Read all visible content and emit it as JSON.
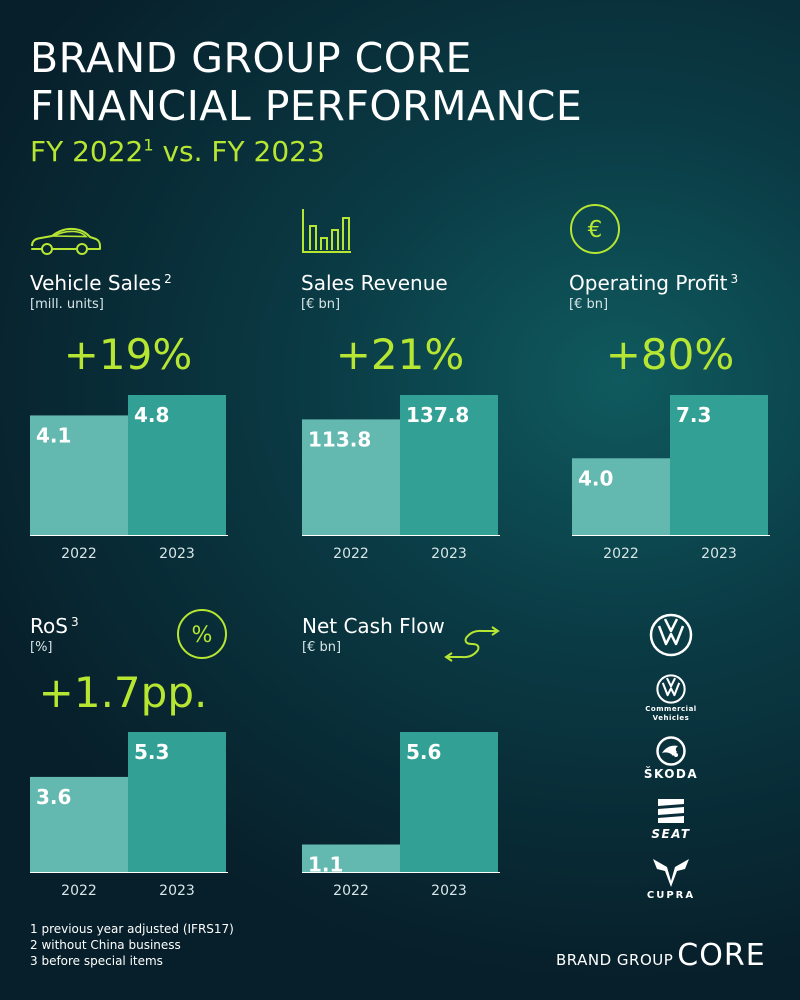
{
  "header": {
    "title": "BRAND GROUP CORE\nFINANCIAL PERFORMANCE",
    "subtitle": "FY 2022",
    "subtitle_sup": "1",
    "subtitle_rest": " vs. FY 2023"
  },
  "metrics": [
    {
      "label": "Vehicle Sales",
      "sup": "2",
      "unit": "[mill. units]",
      "change": "+19%",
      "icon": "car-icon"
    },
    {
      "label": "Sales Revenue",
      "sup": "",
      "unit": "[€ bn]",
      "change": "+21%",
      "icon": "bar-chart-icon"
    },
    {
      "label": "Operating Profit",
      "sup": "3",
      "unit": "[€ bn]",
      "change": "+80%",
      "icon": "euro-icon"
    },
    {
      "label": "RoS",
      "sup": "3",
      "unit": "[%]",
      "change": "+1.7pp.",
      "icon": "percent-icon"
    },
    {
      "label": "Net Cash Flow",
      "sup": "",
      "unit": "[€ bn]",
      "change": "",
      "icon": "exchange-arrows-icon"
    }
  ],
  "chart_data": [
    {
      "type": "bar",
      "categories": [
        "2022",
        "2023"
      ],
      "values": [
        4.1,
        4.8
      ],
      "labels": [
        "4.1",
        "4.8"
      ]
    },
    {
      "type": "bar",
      "categories": [
        "2022",
        "2023"
      ],
      "values": [
        113.8,
        137.8
      ],
      "labels": [
        "113.8",
        "137.8"
      ]
    },
    {
      "type": "bar",
      "categories": [
        "2022",
        "2023"
      ],
      "values": [
        4.0,
        7.3
      ],
      "labels": [
        "4.0",
        "7.3"
      ]
    },
    {
      "type": "bar",
      "categories": [
        "2022",
        "2023"
      ],
      "values": [
        3.6,
        5.3
      ],
      "labels": [
        "3.6",
        "5.3"
      ]
    },
    {
      "type": "bar",
      "categories": [
        "2022",
        "2023"
      ],
      "values": [
        1.1,
        5.6
      ],
      "labels": [
        "1.1",
        "5.6"
      ]
    }
  ],
  "footnotes": [
    "1 previous year adjusted (IFRS17)",
    "2 without China business",
    "3 before special items"
  ],
  "brand": {
    "small": "BRAND GROUP",
    "big": "CORE"
  },
  "logos": {
    "commercial": "Commercial\nVehicles",
    "skoda": "ŠKODA",
    "seat": "SEAT",
    "cupra": "CUPRA"
  },
  "colors": {
    "accent": "#b6e632",
    "bar_2022": "#63b8b0",
    "bar_2023": "#33a095",
    "background": "#0a3a44"
  }
}
